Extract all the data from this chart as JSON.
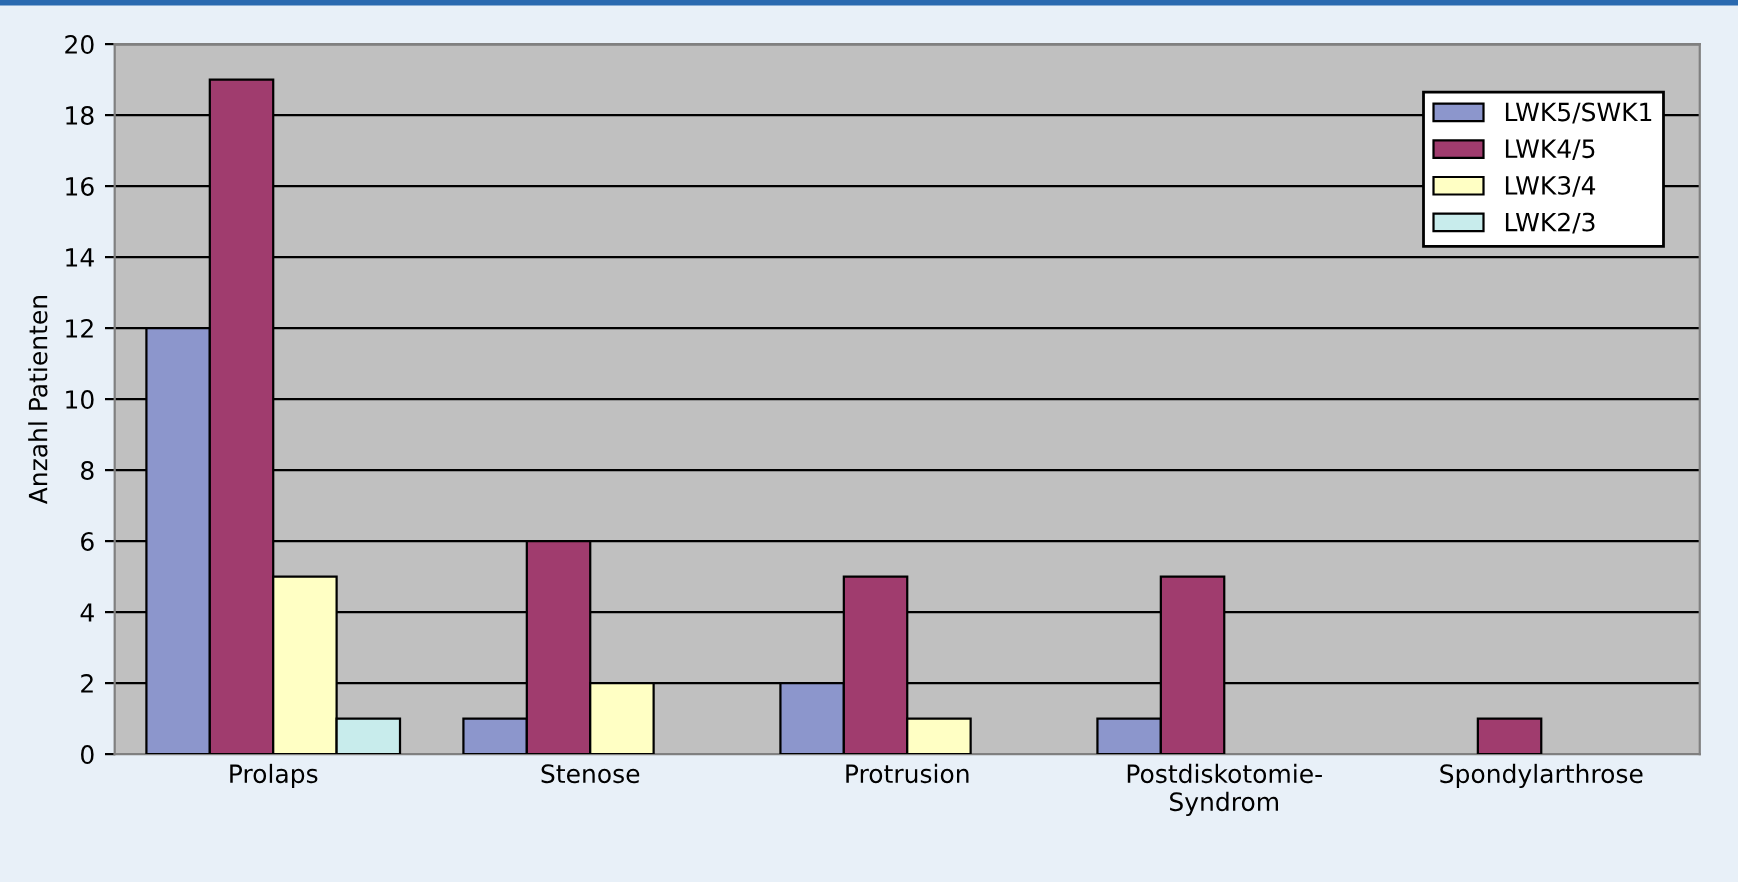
{
  "chart_data": {
    "type": "bar",
    "ylabel": "Anzahl Patienten",
    "categories": [
      "Prolaps",
      "Stenose",
      "Protrusion",
      "Postdiskotomie-\nSyndrom",
      "Spondylarthrose"
    ],
    "series": [
      {
        "name": "LWK5/SWK1",
        "color": "#8c96cc",
        "values": [
          12,
          1,
          2,
          1,
          0
        ]
      },
      {
        "name": "LWK4/5",
        "color": "#a03c6e",
        "values": [
          19,
          6,
          5,
          5,
          1
        ]
      },
      {
        "name": "LWK3/4",
        "color": "#ffffc4",
        "values": [
          5,
          2,
          1,
          0,
          0
        ]
      },
      {
        "name": "LWK2/3",
        "color": "#c8ecec",
        "values": [
          1,
          0,
          0,
          0,
          0
        ]
      }
    ],
    "ylim": [
      0,
      20
    ],
    "yticks": [
      0,
      2,
      4,
      6,
      8,
      10,
      12,
      14,
      16,
      18,
      20
    ],
    "grid": "y",
    "legend": "top right"
  }
}
